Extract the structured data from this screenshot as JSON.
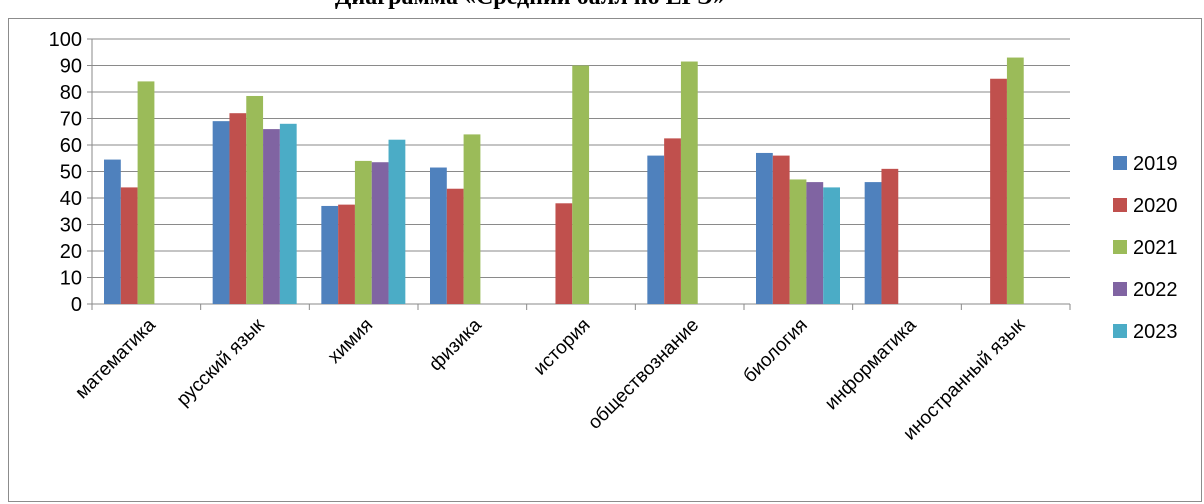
{
  "chart_data": {
    "type": "bar",
    "title": "Диаграмма «Средний балл по ЕГЭ»",
    "xlabel": "",
    "ylabel": "",
    "ylim": [
      0,
      100
    ],
    "yticks": [
      0,
      10,
      20,
      30,
      40,
      50,
      60,
      70,
      80,
      90,
      100
    ],
    "grid": true,
    "legend_position": "right",
    "categories": [
      "математика",
      "русский язык",
      "химия",
      "физика",
      "история",
      "обществознание",
      "биология",
      "информатика",
      "иностранный язык"
    ],
    "series": [
      {
        "name": "2019",
        "color": "#4F81BD",
        "values": [
          54.5,
          69,
          37,
          51.5,
          null,
          56,
          57,
          46,
          null
        ]
      },
      {
        "name": "2020",
        "color": "#C0504D",
        "values": [
          44,
          72,
          37.5,
          43.5,
          38,
          62.5,
          56,
          51,
          85
        ]
      },
      {
        "name": "2021",
        "color": "#9BBB59",
        "values": [
          84,
          78.5,
          54,
          64,
          90,
          91.5,
          47,
          null,
          93
        ]
      },
      {
        "name": "2022",
        "color": "#8064A2",
        "values": [
          null,
          66,
          53.5,
          null,
          null,
          null,
          46,
          null,
          null
        ]
      },
      {
        "name": "2023",
        "color": "#4BACC6",
        "values": [
          null,
          68,
          62,
          null,
          null,
          null,
          44,
          null,
          null
        ]
      }
    ]
  }
}
